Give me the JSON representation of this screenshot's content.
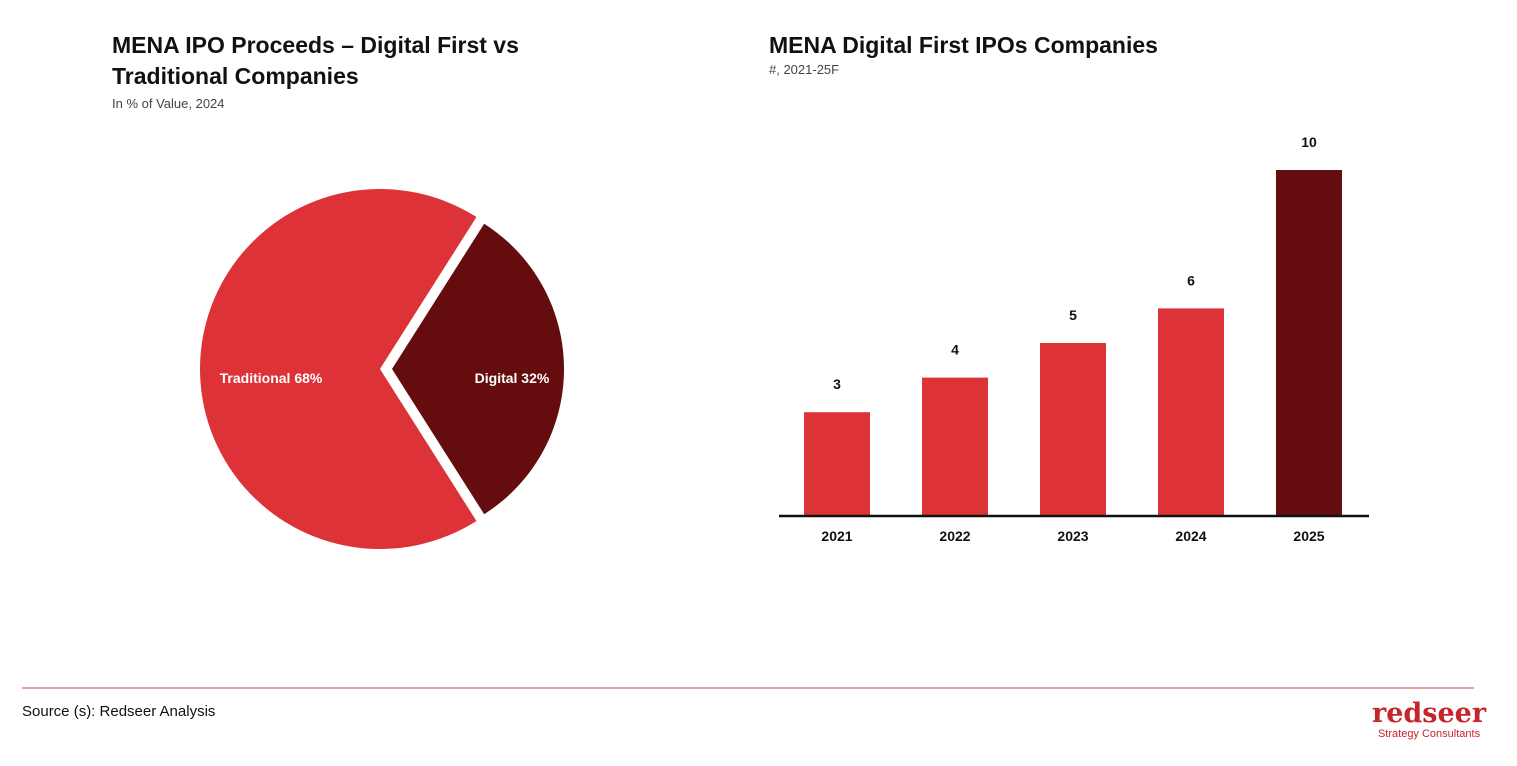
{
  "chart_data": [
    {
      "type": "pie",
      "title": "MENA IPO Proceeds – Digital First vs Traditional Companies",
      "subtitle": "In % of Value, 2024",
      "slices": [
        {
          "name": "Traditional",
          "value": 68,
          "label": "Traditional 68%",
          "color": "#DD3237"
        },
        {
          "name": "Digital",
          "value": 32,
          "label": "Digital 32%",
          "color": "#650D0E"
        }
      ]
    },
    {
      "type": "bar",
      "title": "MENA Digital First IPOs Companies",
      "subtitle": "#, 2021-25F",
      "categories": [
        "2021",
        "2022",
        "2023",
        "2024",
        "2025"
      ],
      "values": [
        3,
        4,
        5,
        6,
        10
      ],
      "colors": [
        "#DD3237",
        "#DD3237",
        "#DD3237",
        "#DD3237",
        "#650D0E"
      ],
      "ylim": [
        0,
        10
      ]
    }
  ],
  "footer": {
    "source": "Source (s): Redseer Analysis",
    "logo_word": "redseer",
    "logo_tagline": "Strategy Consultants"
  }
}
